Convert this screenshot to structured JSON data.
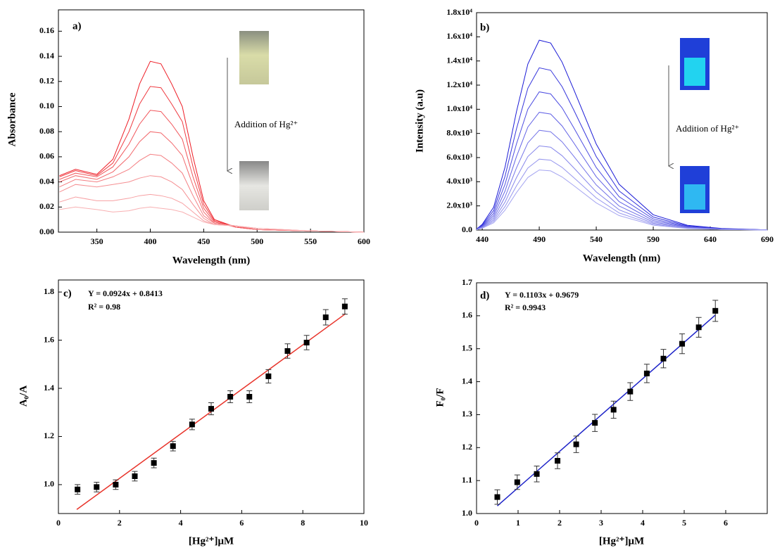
{
  "chart_data": [
    {
      "type": "line",
      "label": "a)",
      "xlabel": "Wavelength (nm)",
      "ylabel": "Absorbance",
      "annotation": "Addition of Hg²⁺",
      "x": [
        315,
        330,
        350,
        365,
        380,
        390,
        400,
        410,
        420,
        430,
        440,
        450,
        460,
        480,
        500,
        550,
        600
      ],
      "xlim": [
        314,
        600
      ],
      "xticks": [
        350,
        400,
        450,
        500,
        550,
        600
      ],
      "ylim": [
        0,
        0.177
      ],
      "yticks": [
        {
          "value": 0,
          "label": "0.00"
        },
        {
          "value": 0.02,
          "label": "0.02"
        },
        {
          "value": 0.04,
          "label": "0.04"
        },
        {
          "value": 0.06,
          "label": "0.06"
        },
        {
          "value": 0.08,
          "label": "0.08"
        },
        {
          "value": 0.1,
          "label": "0.10"
        },
        {
          "value": 0.12,
          "label": "0.12"
        },
        {
          "value": 0.14,
          "label": "0.14"
        },
        {
          "value": 0.16,
          "label": "0.16"
        }
      ],
      "series": [
        {
          "color": "#ee1c25",
          "values": [
            0.045,
            0.05,
            0.046,
            0.058,
            0.09,
            0.118,
            0.136,
            0.134,
            0.118,
            0.1,
            0.06,
            0.025,
            0.01,
            0.004,
            0.002,
            0.001,
            0
          ]
        },
        {
          "color": "#ef3a40",
          "values": [
            0.044,
            0.049,
            0.045,
            0.055,
            0.08,
            0.102,
            0.116,
            0.115,
            0.102,
            0.088,
            0.052,
            0.022,
            0.009,
            0.004,
            0.002,
            0.001,
            0
          ]
        },
        {
          "color": "#f1555a",
          "values": [
            0.042,
            0.047,
            0.044,
            0.052,
            0.07,
            0.086,
            0.097,
            0.096,
            0.086,
            0.074,
            0.044,
            0.019,
            0.008,
            0.004,
            0.002,
            0.001,
            0
          ]
        },
        {
          "color": "#f26a6e",
          "values": [
            0.04,
            0.045,
            0.042,
            0.048,
            0.06,
            0.072,
            0.08,
            0.079,
            0.071,
            0.061,
            0.037,
            0.016,
            0.007,
            0.005,
            0.002,
            0.001,
            0
          ]
        },
        {
          "color": "#f47e82",
          "values": [
            0.036,
            0.042,
            0.04,
            0.044,
            0.05,
            0.057,
            0.062,
            0.061,
            0.055,
            0.047,
            0.029,
            0.013,
            0.007,
            0.005,
            0.002,
            0.001,
            0
          ]
        },
        {
          "color": "#f58f92",
          "values": [
            0.032,
            0.038,
            0.036,
            0.038,
            0.04,
            0.043,
            0.045,
            0.044,
            0.04,
            0.034,
            0.022,
            0.011,
            0.006,
            0.005,
            0.003,
            0.001,
            0
          ]
        },
        {
          "color": "#f7a0a3",
          "values": [
            0.024,
            0.028,
            0.025,
            0.025,
            0.027,
            0.029,
            0.03,
            0.029,
            0.027,
            0.023,
            0.016,
            0.009,
            0.006,
            0.005,
            0.003,
            0.001,
            0
          ]
        },
        {
          "color": "#f8b0b2",
          "values": [
            0.018,
            0.02,
            0.018,
            0.016,
            0.017,
            0.019,
            0.02,
            0.019,
            0.018,
            0.016,
            0.012,
            0.008,
            0.006,
            0.005,
            0.003,
            0.001,
            0
          ]
        }
      ]
    },
    {
      "type": "line",
      "label": "b)",
      "xlabel": "Wavelength (nm)",
      "ylabel": "Intensity (a.u)",
      "annotation": "Addition of Hg²⁺",
      "x": [
        435,
        440,
        450,
        460,
        470,
        480,
        490,
        500,
        510,
        520,
        540,
        560,
        590,
        620,
        650,
        690
      ],
      "xlim": [
        435,
        690
      ],
      "xticks": [
        440,
        490,
        540,
        590,
        640,
        690
      ],
      "ylim": [
        0,
        18000
      ],
      "yticks": [
        {
          "value": 0,
          "label": "0.0"
        },
        {
          "value": 2000,
          "label": "2.0x10³"
        },
        {
          "value": 4000,
          "label": "4.0x10³"
        },
        {
          "value": 6000,
          "label": "6.0x10³"
        },
        {
          "value": 8000,
          "label": "8.0x10³"
        },
        {
          "value": 10000,
          "label": "1.0x10⁴"
        },
        {
          "value": 12000,
          "label": "1.2x10⁴"
        },
        {
          "value": 14000,
          "label": "1.4x10⁴"
        },
        {
          "value": 16000,
          "label": "1.6x10⁴"
        },
        {
          "value": 18000,
          "label": "1.8x10⁴"
        }
      ],
      "series": [
        {
          "color": "#1a1ad6",
          "values": [
            79,
            474,
            1896,
            5214,
            9796,
            13746,
            15721,
            15484,
            13904,
            11692,
            7110,
            3792,
            1264,
            395,
            126,
            16
          ]
        },
        {
          "color": "#3535dc",
          "values": [
            68,
            405,
            1620,
            4455,
            8370,
            11745,
            13433,
            13230,
            11880,
            9990,
            6075,
            3240,
            1080,
            338,
            108,
            14
          ]
        },
        {
          "color": "#4d4de1",
          "values": [
            58,
            345,
            1380,
            3795,
            7130,
            10005,
            11443,
            11270,
            10120,
            8510,
            5175,
            2760,
            920,
            288,
            92,
            12
          ]
        },
        {
          "color": "#6262e5",
          "values": [
            49,
            294,
            1176,
            3234,
            6076,
            8526,
            9751,
            9604,
            8624,
            7252,
            4410,
            2352,
            784,
            245,
            78,
            10
          ]
        },
        {
          "color": "#7575e8",
          "values": [
            42,
            249,
            996,
            2739,
            5146,
            7221,
            8259,
            8134,
            7304,
            6142,
            3735,
            1992,
            664,
            208,
            66,
            8
          ]
        },
        {
          "color": "#8686eb",
          "values": [
            35,
            210,
            840,
            2310,
            4340,
            6090,
            6965,
            6860,
            6160,
            5180,
            3150,
            1680,
            560,
            175,
            56,
            7
          ]
        },
        {
          "color": "#9696ee",
          "values": [
            30,
            177,
            708,
            1947,
            3658,
            5133,
            5871,
            5782,
            5192,
            4366,
            2655,
            1416,
            472,
            148,
            47,
            6
          ]
        },
        {
          "color": "#a5a5f1",
          "values": [
            25,
            150,
            600,
            1650,
            3100,
            4350,
            4975,
            4900,
            4400,
            3700,
            2250,
            1200,
            400,
            125,
            40,
            5
          ]
        }
      ]
    },
    {
      "type": "scatter",
      "label": "c)",
      "equation": "Y = 0.0924x + 0.8413",
      "r2": "R² = 0.98",
      "xlabel": "[Hg²⁺]μM",
      "ylabel": "A₀/A",
      "x": [
        0.625,
        1.25,
        1.875,
        2.5,
        3.125,
        3.75,
        4.375,
        5.0,
        5.625,
        6.25,
        6.875,
        7.5,
        8.125,
        8.75,
        9.375
      ],
      "values": [
        0.98,
        0.99,
        1.0,
        1.035,
        1.09,
        1.16,
        1.25,
        1.315,
        1.365,
        1.365,
        1.45,
        1.555,
        1.59,
        1.695,
        1.74
      ],
      "errors": [
        0.02,
        0.02,
        0.02,
        0.02,
        0.02,
        0.02,
        0.022,
        0.025,
        0.025,
        0.025,
        0.028,
        0.03,
        0.03,
        0.032,
        0.032
      ],
      "color": "#000000",
      "fit": {
        "x": [
          0.6,
          9.4
        ],
        "values": [
          0.8967,
          1.7099
        ],
        "color": "#e8332a"
      },
      "xlim": [
        0,
        10
      ],
      "xticks": [
        0,
        2,
        4,
        6,
        8,
        10
      ],
      "ylim": [
        0.88,
        1.85
      ],
      "yticks": [
        {
          "value": 1,
          "label": "1.0"
        },
        1.2,
        1.4,
        1.6,
        1.8
      ]
    },
    {
      "type": "scatter",
      "label": "d)",
      "equation": "Y = 0.1103x + 0.9679",
      "r2": "R² = 0.9943",
      "xlabel": "[Hg²⁺]μM",
      "ylabel": "F₀/F",
      "x": [
        0.5,
        0.98,
        1.45,
        1.95,
        2.4,
        2.85,
        3.3,
        3.7,
        4.1,
        4.5,
        4.95,
        5.35,
        5.75
      ],
      "values": [
        1.05,
        1.095,
        1.12,
        1.16,
        1.21,
        1.275,
        1.315,
        1.37,
        1.425,
        1.47,
        1.515,
        1.565,
        1.615
      ],
      "errors": [
        0.022,
        0.022,
        0.024,
        0.024,
        0.025,
        0.026,
        0.026,
        0.027,
        0.028,
        0.028,
        0.03,
        0.03,
        0.032
      ],
      "color": "#000000",
      "fit": {
        "x": [
          0.5,
          5.75
        ],
        "values": [
          1.0231,
          1.6021
        ],
        "color": "#1c22c8"
      },
      "xlim": [
        0,
        7
      ],
      "xticks": [
        0,
        1,
        2,
        3,
        4,
        5,
        6
      ],
      "ylim": [
        1,
        1.7
      ],
      "yticks": [
        {
          "value": 1,
          "label": "1.0"
        },
        1.1,
        1.2,
        1.3,
        1.4,
        1.5,
        1.6,
        1.7
      ]
    }
  ]
}
